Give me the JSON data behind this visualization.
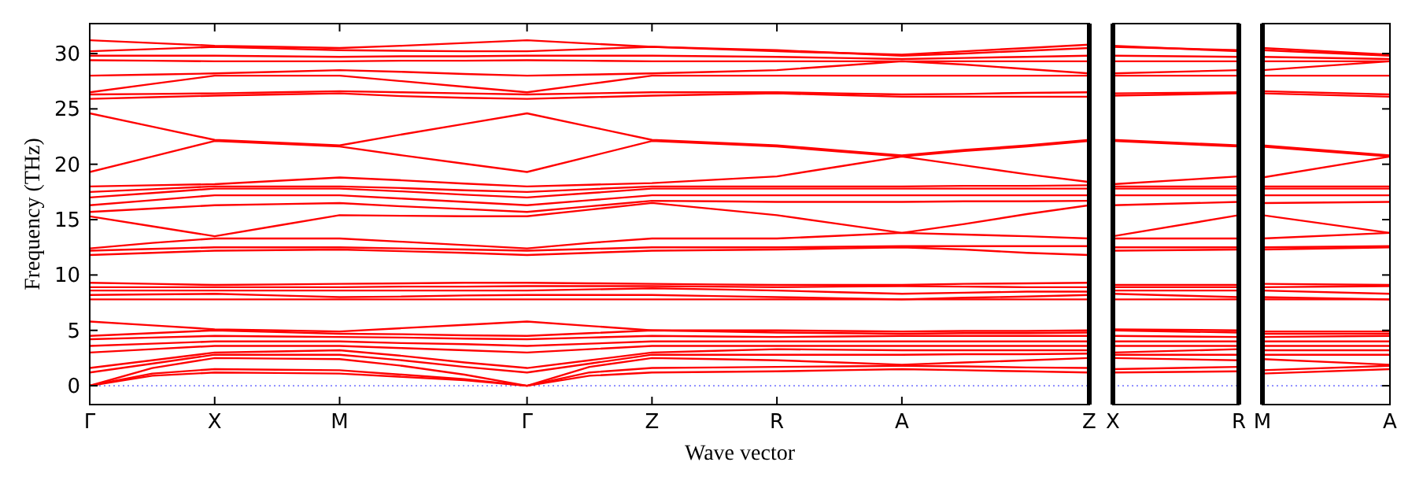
{
  "chart_data": [
    {
      "type": "line",
      "ylabel": "Frequency (THz)",
      "xlabel": "Wave vector",
      "categories": [
        "Γ",
        null,
        "X",
        null,
        "M",
        null,
        null,
        "Γ",
        null,
        "Z",
        null,
        "R",
        null,
        "A",
        null,
        null,
        "Z"
      ],
      "ylim": [
        -1.7,
        32.7
      ],
      "yticks": [
        0,
        5,
        10,
        15,
        20,
        25,
        30
      ],
      "grid": false,
      "marker": "none",
      "line_style": "solid",
      "ref_lines": [
        {
          "axis": "y",
          "value": 0,
          "color": "#8080ff",
          "line_style": "dotted"
        }
      ],
      "series": [
        {
          "color": "#ff0000",
          "values": [
            0,
            0.9,
            1.2,
            1.15,
            1.1,
            0.8,
            0.5,
            0,
            0.9,
            1.2,
            1.25,
            1.3,
            1.4,
            1.5,
            1.4,
            1.3,
            1.2
          ]
        },
        {
          "color": "#ff0000",
          "values": [
            0,
            1.1,
            1.5,
            1.45,
            1.4,
            1.0,
            0.6,
            0,
            1.2,
            1.6,
            1.65,
            1.7,
            1.75,
            1.8,
            1.75,
            1.65,
            1.6
          ]
        },
        {
          "color": "#ff0000",
          "values": [
            0,
            1.6,
            2.5,
            2.45,
            2.4,
            1.8,
            1.0,
            0,
            1.7,
            2.5,
            2.4,
            2.3,
            2.1,
            1.9,
            2.1,
            2.3,
            2.5
          ]
        },
        {
          "color": "#ff0000",
          "values": [
            1.2,
            2.0,
            2.8,
            2.8,
            2.8,
            2.3,
            1.7,
            1.2,
            2.0,
            2.8,
            2.8,
            2.8,
            2.8,
            2.8,
            2.85,
            2.85,
            2.9
          ]
        },
        {
          "color": "#ff0000",
          "values": [
            1.6,
            2.3,
            3.0,
            3.1,
            3.2,
            2.7,
            2.1,
            1.6,
            2.3,
            3.0,
            3.15,
            3.3,
            3.25,
            3.2,
            3.2,
            3.2,
            3.2
          ]
        },
        {
          "color": "#ff0000",
          "values": [
            3.0,
            3.3,
            3.6,
            3.6,
            3.6,
            3.4,
            3.2,
            3.0,
            3.3,
            3.6,
            3.6,
            3.6,
            3.6,
            3.6,
            3.6,
            3.6,
            3.6
          ]
        },
        {
          "color": "#ff0000",
          "values": [
            3.6,
            3.8,
            4.0,
            4.0,
            4.0,
            3.85,
            3.75,
            3.6,
            3.8,
            4.0,
            4.0,
            4.0,
            4.0,
            4.0,
            4.0,
            4.0,
            4.0
          ]
        },
        {
          "color": "#ff0000",
          "values": [
            4.2,
            4.35,
            4.5,
            4.45,
            4.4,
            4.35,
            4.25,
            4.2,
            4.35,
            4.5,
            4.45,
            4.4,
            4.45,
            4.5,
            4.5,
            4.5,
            4.5
          ]
        },
        {
          "color": "#ff0000",
          "values": [
            4.5,
            4.75,
            5.0,
            4.85,
            4.7,
            4.65,
            4.55,
            4.5,
            4.75,
            5.0,
            4.9,
            4.8,
            4.75,
            4.7,
            4.75,
            4.75,
            4.8
          ]
        },
        {
          "color": "#ff0000",
          "values": [
            5.8,
            5.45,
            5.1,
            5.0,
            4.9,
            5.2,
            5.5,
            5.8,
            5.4,
            5.0,
            5.0,
            5.0,
            4.95,
            4.9,
            4.95,
            4.95,
            5.0
          ]
        },
        {
          "color": "#ff0000",
          "values": [
            7.8,
            7.8,
            7.8,
            7.8,
            7.8,
            7.8,
            7.8,
            7.8,
            7.8,
            7.8,
            7.8,
            7.8,
            7.8,
            7.8,
            7.8,
            7.8,
            7.8
          ]
        },
        {
          "color": "#ff0000",
          "values": [
            8.2,
            8.25,
            8.3,
            8.15,
            8.0,
            8.05,
            8.15,
            8.2,
            8.2,
            8.2,
            8.1,
            8.0,
            7.9,
            7.8,
            7.95,
            8.05,
            8.2
          ]
        },
        {
          "color": "#ff0000",
          "values": [
            8.6,
            8.6,
            8.6,
            8.6,
            8.6,
            8.6,
            8.6,
            8.6,
            8.7,
            8.8,
            8.7,
            8.6,
            8.45,
            8.3,
            8.4,
            8.5,
            8.5
          ]
        },
        {
          "color": "#ff0000",
          "values": [
            8.9,
            8.9,
            8.9,
            8.9,
            8.9,
            8.95,
            8.95,
            9.0,
            9.0,
            9.0,
            8.95,
            8.9,
            8.95,
            9.0,
            8.95,
            8.9,
            8.9
          ]
        },
        {
          "color": "#ff0000",
          "values": [
            9.3,
            9.2,
            9.1,
            9.15,
            9.2,
            9.25,
            9.3,
            9.3,
            9.25,
            9.2,
            9.15,
            9.1,
            9.1,
            9.1,
            9.2,
            9.25,
            9.3
          ]
        },
        {
          "color": "#ff0000",
          "values": [
            11.8,
            12.0,
            12.2,
            12.25,
            12.3,
            12.15,
            12.0,
            11.8,
            12.0,
            12.2,
            12.25,
            12.3,
            12.4,
            12.5,
            12.3,
            12.0,
            11.8
          ]
        },
        {
          "color": "#ff0000",
          "values": [
            12.2,
            12.35,
            12.5,
            12.5,
            12.5,
            12.4,
            12.3,
            12.2,
            12.35,
            12.5,
            12.5,
            12.5,
            12.55,
            12.6,
            12.6,
            12.6,
            12.6
          ]
        },
        {
          "color": "#ff0000",
          "values": [
            12.4,
            12.9,
            13.3,
            13.3,
            13.3,
            13.0,
            12.7,
            12.4,
            12.9,
            13.3,
            13.3,
            13.3,
            13.55,
            13.8,
            13.65,
            13.5,
            13.3
          ]
        },
        {
          "color": "#ff0000",
          "values": [
            15.3,
            14.4,
            13.5,
            14.45,
            15.4,
            15.35,
            15.3,
            15.3,
            15.9,
            16.5,
            15.95,
            15.4,
            14.6,
            13.8,
            14.6,
            15.5,
            16.3
          ]
        },
        {
          "color": "#ff0000",
          "values": [
            15.7,
            16.0,
            16.3,
            16.4,
            16.5,
            16.2,
            15.95,
            15.7,
            16.2,
            16.7,
            16.65,
            16.6,
            16.6,
            16.6,
            16.65,
            16.65,
            16.7
          ]
        },
        {
          "color": "#ff0000",
          "values": [
            16.3,
            16.75,
            17.2,
            17.2,
            17.2,
            16.9,
            16.6,
            16.3,
            16.75,
            17.2,
            17.2,
            17.2,
            17.2,
            17.2,
            17.2,
            17.2,
            17.2
          ]
        },
        {
          "color": "#ff0000",
          "values": [
            17.0,
            17.4,
            17.8,
            17.8,
            17.8,
            17.55,
            17.25,
            17.0,
            17.4,
            17.8,
            17.8,
            17.8,
            17.8,
            17.8,
            17.8,
            17.8,
            17.8
          ]
        },
        {
          "color": "#ff0000",
          "values": [
            17.5,
            17.75,
            18.0,
            18.0,
            18.0,
            17.85,
            17.65,
            17.5,
            17.75,
            18.0,
            18.0,
            18.0,
            18.0,
            18.0,
            18.05,
            18.05,
            18.1
          ]
        },
        {
          "color": "#ff0000",
          "values": [
            18.0,
            18.1,
            18.2,
            18.5,
            18.8,
            18.55,
            18.25,
            18.0,
            18.15,
            18.3,
            18.6,
            18.9,
            19.8,
            20.7,
            19.9,
            19.1,
            18.4
          ]
        },
        {
          "color": "#ff0000",
          "values": [
            19.3,
            20.7,
            22.1,
            21.85,
            21.6,
            20.8,
            20.05,
            19.3,
            20.7,
            22.1,
            21.85,
            21.6,
            21.15,
            20.7,
            21.2,
            21.6,
            22.1
          ]
        },
        {
          "color": "#ff0000",
          "values": [
            24.6,
            23.4,
            22.2,
            21.95,
            21.7,
            22.7,
            23.65,
            24.6,
            23.4,
            22.2,
            21.95,
            21.7,
            21.25,
            20.8,
            21.3,
            21.7,
            22.2
          ]
        },
        {
          "color": "#ff0000",
          "values": [
            25.9,
            26.05,
            26.2,
            26.3,
            26.4,
            26.15,
            26.0,
            25.9,
            26.05,
            26.2,
            26.3,
            26.4,
            26.25,
            26.1,
            26.1,
            26.1,
            26.1
          ]
        },
        {
          "color": "#ff0000",
          "values": [
            26.3,
            26.35,
            26.4,
            26.5,
            26.6,
            26.5,
            26.4,
            26.3,
            26.4,
            26.5,
            26.5,
            26.5,
            26.4,
            26.3,
            26.35,
            26.45,
            26.5
          ]
        },
        {
          "color": "#ff0000",
          "values": [
            26.5,
            27.25,
            28.0,
            28.0,
            28.0,
            27.5,
            27.0,
            26.5,
            27.25,
            28.0,
            28.0,
            28.0,
            28.0,
            28.0,
            28.0,
            28.0,
            28.0
          ]
        },
        {
          "color": "#ff0000",
          "values": [
            28.0,
            28.1,
            28.2,
            28.35,
            28.5,
            28.35,
            28.15,
            28.0,
            28.1,
            28.2,
            28.35,
            28.5,
            28.9,
            29.3,
            29.0,
            28.6,
            28.2
          ]
        },
        {
          "color": "#ff0000",
          "values": [
            29.4,
            29.35,
            29.3,
            29.3,
            29.3,
            29.35,
            29.35,
            29.4,
            29.35,
            29.3,
            29.3,
            29.3,
            29.3,
            29.3,
            29.3,
            29.3,
            29.3
          ]
        },
        {
          "color": "#ff0000",
          "values": [
            29.8,
            29.8,
            29.8,
            29.75,
            29.7,
            29.75,
            29.75,
            29.8,
            29.8,
            29.8,
            29.75,
            29.7,
            29.6,
            29.5,
            29.6,
            29.7,
            29.8
          ]
        },
        {
          "color": "#ff0000",
          "values": [
            30.2,
            30.4,
            30.6,
            30.45,
            30.3,
            30.25,
            30.2,
            30.2,
            30.4,
            30.6,
            30.45,
            30.3,
            30.05,
            29.8,
            30.0,
            30.25,
            30.5
          ]
        },
        {
          "color": "#ff0000",
          "values": [
            31.2,
            30.95,
            30.7,
            30.6,
            30.5,
            30.7,
            30.95,
            31.2,
            30.9,
            30.6,
            30.4,
            30.2,
            30.05,
            29.9,
            30.2,
            30.5,
            30.8
          ]
        }
      ]
    },
    {
      "type": "line",
      "categories": [
        "X",
        "R"
      ],
      "ylim": [
        -1.7,
        32.7
      ],
      "tick_labels": "x",
      "marker": "none",
      "line_style": "solid",
      "ref_lines": [
        {
          "axis": "y",
          "value": 0,
          "color": "#8080ff",
          "line_style": "dotted"
        }
      ],
      "series": [
        {
          "color": "#ff0000",
          "values": [
            1.2,
            1.3
          ]
        },
        {
          "color": "#ff0000",
          "values": [
            1.5,
            1.7
          ]
        },
        {
          "color": "#ff0000",
          "values": [
            2.5,
            2.3
          ]
        },
        {
          "color": "#ff0000",
          "values": [
            2.8,
            2.8
          ]
        },
        {
          "color": "#ff0000",
          "values": [
            3.0,
            3.3
          ]
        },
        {
          "color": "#ff0000",
          "values": [
            3.6,
            3.6
          ]
        },
        {
          "color": "#ff0000",
          "values": [
            4.0,
            4.0
          ]
        },
        {
          "color": "#ff0000",
          "values": [
            4.5,
            4.4
          ]
        },
        {
          "color": "#ff0000",
          "values": [
            5.0,
            4.8
          ]
        },
        {
          "color": "#ff0000",
          "values": [
            5.1,
            5.0
          ]
        },
        {
          "color": "#ff0000",
          "values": [
            7.8,
            7.8
          ]
        },
        {
          "color": "#ff0000",
          "values": [
            8.3,
            8.0
          ]
        },
        {
          "color": "#ff0000",
          "values": [
            8.6,
            8.6
          ]
        },
        {
          "color": "#ff0000",
          "values": [
            8.9,
            8.9
          ]
        },
        {
          "color": "#ff0000",
          "values": [
            9.1,
            9.1
          ]
        },
        {
          "color": "#ff0000",
          "values": [
            12.2,
            12.3
          ]
        },
        {
          "color": "#ff0000",
          "values": [
            12.5,
            12.5
          ]
        },
        {
          "color": "#ff0000",
          "values": [
            13.3,
            13.3
          ]
        },
        {
          "color": "#ff0000",
          "values": [
            13.5,
            15.4
          ]
        },
        {
          "color": "#ff0000",
          "values": [
            16.3,
            16.6
          ]
        },
        {
          "color": "#ff0000",
          "values": [
            17.2,
            17.2
          ]
        },
        {
          "color": "#ff0000",
          "values": [
            17.8,
            17.8
          ]
        },
        {
          "color": "#ff0000",
          "values": [
            18.0,
            18.0
          ]
        },
        {
          "color": "#ff0000",
          "values": [
            18.2,
            18.9
          ]
        },
        {
          "color": "#ff0000",
          "values": [
            22.1,
            21.6
          ]
        },
        {
          "color": "#ff0000",
          "values": [
            22.2,
            21.7
          ]
        },
        {
          "color": "#ff0000",
          "values": [
            26.2,
            26.4
          ]
        },
        {
          "color": "#ff0000",
          "values": [
            26.4,
            26.5
          ]
        },
        {
          "color": "#ff0000",
          "values": [
            28.0,
            28.0
          ]
        },
        {
          "color": "#ff0000",
          "values": [
            28.2,
            28.5
          ]
        },
        {
          "color": "#ff0000",
          "values": [
            29.3,
            29.3
          ]
        },
        {
          "color": "#ff0000",
          "values": [
            29.8,
            29.7
          ]
        },
        {
          "color": "#ff0000",
          "values": [
            30.6,
            30.3
          ]
        },
        {
          "color": "#ff0000",
          "values": [
            30.7,
            30.2
          ]
        }
      ]
    },
    {
      "type": "line",
      "categories": [
        "M",
        "A"
      ],
      "ylim": [
        -1.7,
        32.7
      ],
      "yticks": [
        0,
        5,
        10,
        15,
        20,
        25,
        30
      ],
      "tick_labels": "x",
      "marker": "none",
      "line_style": "solid",
      "ref_lines": [
        {
          "axis": "y",
          "value": 0,
          "color": "#8080ff",
          "line_style": "dotted"
        }
      ],
      "series": [
        {
          "color": "#ff0000",
          "values": [
            1.1,
            1.5
          ]
        },
        {
          "color": "#ff0000",
          "values": [
            1.4,
            1.8
          ]
        },
        {
          "color": "#ff0000",
          "values": [
            2.4,
            1.9
          ]
        },
        {
          "color": "#ff0000",
          "values": [
            2.8,
            2.8
          ]
        },
        {
          "color": "#ff0000",
          "values": [
            3.2,
            3.2
          ]
        },
        {
          "color": "#ff0000",
          "values": [
            3.6,
            3.6
          ]
        },
        {
          "color": "#ff0000",
          "values": [
            4.0,
            4.0
          ]
        },
        {
          "color": "#ff0000",
          "values": [
            4.4,
            4.5
          ]
        },
        {
          "color": "#ff0000",
          "values": [
            4.7,
            4.7
          ]
        },
        {
          "color": "#ff0000",
          "values": [
            4.9,
            4.9
          ]
        },
        {
          "color": "#ff0000",
          "values": [
            7.8,
            7.8
          ]
        },
        {
          "color": "#ff0000",
          "values": [
            8.0,
            7.8
          ]
        },
        {
          "color": "#ff0000",
          "values": [
            8.6,
            8.3
          ]
        },
        {
          "color": "#ff0000",
          "values": [
            8.9,
            9.0
          ]
        },
        {
          "color": "#ff0000",
          "values": [
            9.2,
            9.1
          ]
        },
        {
          "color": "#ff0000",
          "values": [
            12.3,
            12.5
          ]
        },
        {
          "color": "#ff0000",
          "values": [
            12.5,
            12.6
          ]
        },
        {
          "color": "#ff0000",
          "values": [
            13.3,
            13.8
          ]
        },
        {
          "color": "#ff0000",
          "values": [
            15.4,
            13.8
          ]
        },
        {
          "color": "#ff0000",
          "values": [
            16.5,
            16.6
          ]
        },
        {
          "color": "#ff0000",
          "values": [
            17.2,
            17.2
          ]
        },
        {
          "color": "#ff0000",
          "values": [
            17.8,
            17.8
          ]
        },
        {
          "color": "#ff0000",
          "values": [
            18.0,
            18.0
          ]
        },
        {
          "color": "#ff0000",
          "values": [
            18.8,
            20.7
          ]
        },
        {
          "color": "#ff0000",
          "values": [
            21.6,
            20.7
          ]
        },
        {
          "color": "#ff0000",
          "values": [
            21.7,
            20.8
          ]
        },
        {
          "color": "#ff0000",
          "values": [
            26.4,
            26.1
          ]
        },
        {
          "color": "#ff0000",
          "values": [
            26.6,
            26.3
          ]
        },
        {
          "color": "#ff0000",
          "values": [
            28.0,
            28.0
          ]
        },
        {
          "color": "#ff0000",
          "values": [
            28.5,
            29.3
          ]
        },
        {
          "color": "#ff0000",
          "values": [
            29.3,
            29.3
          ]
        },
        {
          "color": "#ff0000",
          "values": [
            29.7,
            29.5
          ]
        },
        {
          "color": "#ff0000",
          "values": [
            30.3,
            29.8
          ]
        },
        {
          "color": "#ff0000",
          "values": [
            30.5,
            29.9
          ]
        }
      ]
    }
  ]
}
